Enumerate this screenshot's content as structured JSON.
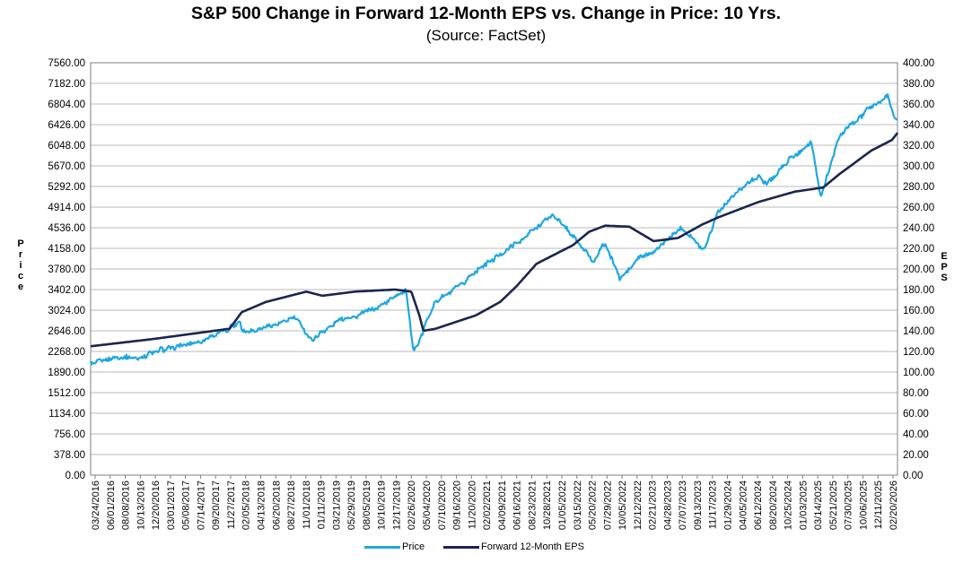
{
  "chart_data": {
    "type": "line",
    "title": "S&P 500 Change in Forward 12-Month EPS vs. Change in Price: 10 Yrs.",
    "subtitle": "(Source: FactSet)",
    "ylabel_left": "Price",
    "ylabel_right": "EPS",
    "ylim_left": [
      0,
      7560
    ],
    "ylim_right": [
      0,
      400
    ],
    "yticks_left": [
      "7560.00",
      "7182.00",
      "6804.00",
      "6426.00",
      "6048.00",
      "5670.00",
      "5292.00",
      "4914.00",
      "4536.00",
      "4158.00",
      "3780.00",
      "3402.00",
      "3024.00",
      "2646.00",
      "2268.00",
      "1890.00",
      "1512.00",
      "1134.00",
      "756.00",
      "378.00",
      "0.00"
    ],
    "yticks_right": [
      "400.00",
      "380.00",
      "360.00",
      "340.00",
      "320.00",
      "300.00",
      "280.00",
      "260.00",
      "240.00",
      "220.00",
      "200.00",
      "180.00",
      "160.00",
      "140.00",
      "120.00",
      "100.00",
      "80.00",
      "60.00",
      "40.00",
      "20.00",
      "0.00"
    ],
    "xticks": [
      "03/24/2016",
      "06/01/2016",
      "08/08/2016",
      "10/13/2016",
      "12/20/2016",
      "03/01/2017",
      "05/08/2017",
      "07/14/2017",
      "09/20/2017",
      "11/27/2017",
      "02/05/2018",
      "04/13/2018",
      "06/20/2018",
      "08/27/2018",
      "11/01/2018",
      "01/11/2019",
      "03/21/2019",
      "05/29/2019",
      "08/05/2019",
      "10/10/2019",
      "12/17/2019",
      "02/26/2020",
      "05/04/2020",
      "07/10/2020",
      "09/16/2020",
      "11/20/2020",
      "02/02/2021",
      "04/09/2021",
      "06/16/2021",
      "08/23/2021",
      "10/28/2021",
      "01/05/2022",
      "03/15/2022",
      "05/20/2022",
      "07/29/2022",
      "10/05/2022",
      "12/12/2022",
      "02/21/2023",
      "04/28/2023",
      "07/07/2023",
      "09/13/2023",
      "11/17/2023",
      "01/29/2024",
      "04/05/2024",
      "06/12/2024",
      "08/20/2024",
      "10/25/2024",
      "01/03/2025",
      "03/14/2025",
      "05/21/2025",
      "07/30/2025",
      "10/06/2025",
      "12/11/2025",
      "02/20/2026"
    ],
    "grid": true,
    "legend_position": "bottom",
    "series": [
      {
        "name": "Price",
        "axis": "left",
        "color": "#1fa7e1",
        "x": [
          2016.23,
          2016.5,
          2016.85,
          2017.0,
          2017.5,
          2017.95,
          2018.08,
          2018.1,
          2018.3,
          2018.6,
          2018.75,
          2018.97,
          2019.3,
          2019.6,
          2019.9,
          2020.13,
          2020.23,
          2020.5,
          2020.8,
          2021.0,
          2021.5,
          2021.95,
          2022.2,
          2022.45,
          2022.6,
          2022.78,
          2023.0,
          2023.2,
          2023.55,
          2023.82,
          2023.98,
          2024.25,
          2024.5,
          2024.6,
          2024.95,
          2025.15,
          2025.27,
          2025.5,
          2025.85,
          2026.1,
          2026.2
        ],
        "y": [
          2040,
          2130,
          2150,
          2260,
          2420,
          2690,
          2850,
          2640,
          2670,
          2800,
          2920,
          2480,
          2830,
          2950,
          3180,
          3380,
          2240,
          3190,
          3450,
          3750,
          4250,
          4780,
          4400,
          3900,
          4250,
          3600,
          3960,
          4100,
          4560,
          4120,
          4790,
          5240,
          5480,
          5340,
          5880,
          6100,
          5100,
          6200,
          6700,
          6940,
          6500
        ]
      },
      {
        "name": "Forward 12-Month EPS",
        "axis": "right",
        "color": "#1b2550",
        "x": [
          2016.23,
          2017.0,
          2017.95,
          2018.1,
          2018.4,
          2018.9,
          2019.1,
          2019.5,
          2020.0,
          2020.2,
          2020.3,
          2020.35,
          2020.5,
          2021.0,
          2021.3,
          2021.5,
          2021.75,
          2022.2,
          2022.4,
          2022.6,
          2022.9,
          2023.2,
          2023.5,
          2023.8,
          2024.0,
          2024.5,
          2024.95,
          2025.3,
          2025.5,
          2025.9,
          2026.15,
          2026.22
        ],
        "y": [
          125,
          132,
          142,
          158,
          168,
          178,
          174,
          178,
          180,
          178,
          155,
          140,
          142,
          155,
          168,
          183,
          205,
          223,
          236,
          242,
          241,
          227,
          230,
          243,
          250,
          265,
          275,
          279,
          292,
          315,
          325,
          332
        ]
      }
    ]
  }
}
